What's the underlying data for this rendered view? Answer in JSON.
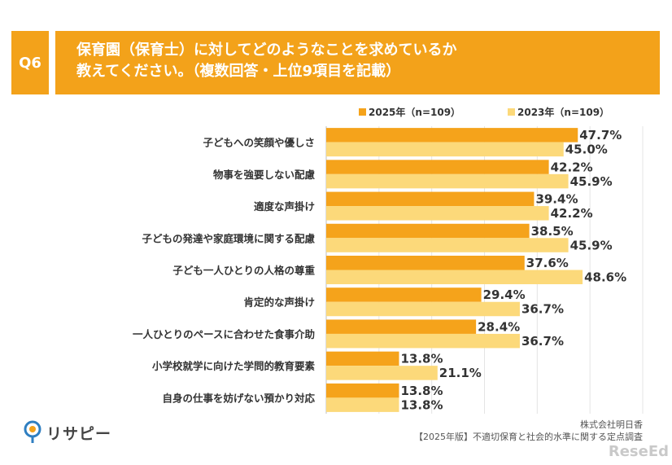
{
  "header": {
    "question_no": "Q6",
    "title_line1": "保育園（保育士）に対してどのようなことを求めているか",
    "title_line2": "教えてください。（複数回答・上位9項目を記載）"
  },
  "colors": {
    "accent": "#f3a21a",
    "series_2025": "#f5a31b",
    "series_2023": "#fcd97a",
    "grid": "#e4e4e4"
  },
  "chart_data": {
    "type": "bar",
    "orientation": "horizontal",
    "title": "保育園（保育士）に対してどのようなことを求めているか教えてください。（複数回答・上位9項目を記載）",
    "categories": [
      "子どもへの笑顔や優しさ",
      "物事を強要しない配慮",
      "適度な声掛け",
      "子どもの発達や家庭環境に関する配慮",
      "子ども一人ひとりの人格の尊重",
      "肯定的な声掛け",
      "一人ひとりのペースに合わせた食事介助",
      "小学校就学に向けた学問的教育要素",
      "自身の仕事を妨げない預かり対応"
    ],
    "series": [
      {
        "name": "2025年（n=109）",
        "values": [
          47.7,
          42.2,
          39.4,
          38.5,
          37.6,
          29.4,
          28.4,
          13.8,
          13.8
        ]
      },
      {
        "name": "2023年（n=109）",
        "values": [
          45.0,
          45.9,
          42.2,
          45.9,
          48.6,
          36.7,
          36.7,
          21.1,
          13.8
        ]
      }
    ],
    "value_suffix": "%",
    "xlim": [
      0,
      60
    ],
    "grid": true,
    "legend_position": "top-right"
  },
  "footer": {
    "brand": "リサピー",
    "source_line1": "株式会社明日香",
    "source_line2": "【2025年版】不適切保育と社会的水準に関する定点調査",
    "watermark": "ReseEd"
  }
}
